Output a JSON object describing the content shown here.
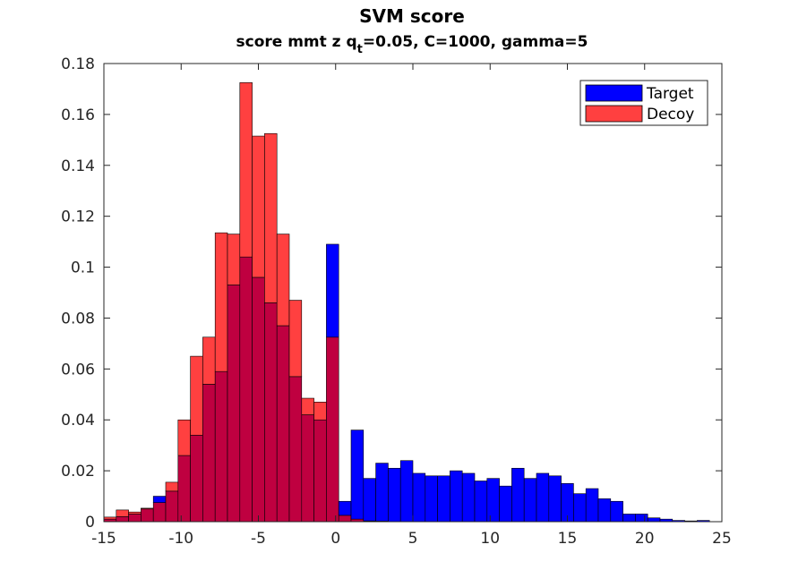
{
  "chart_data": {
    "type": "bar",
    "title": "SVM score",
    "subtitle": {
      "prefix": "score mmt z q",
      "subscript": "t",
      "suffix": "=0.05, C=1000, gamma=5"
    },
    "xlabel": "",
    "ylabel": "",
    "xlim": [
      -15,
      25
    ],
    "ylim": [
      0,
      0.18
    ],
    "xticks": [
      -15,
      -10,
      -5,
      0,
      5,
      10,
      15,
      20,
      25
    ],
    "xtick_labels": [
      "-15",
      "-10",
      "-5",
      "0",
      "5",
      "10",
      "15",
      "20",
      "25"
    ],
    "yticks": [
      0,
      0.02,
      0.04,
      0.06,
      0.08,
      0.1,
      0.12,
      0.14,
      0.16,
      0.18
    ],
    "ytick_labels": [
      "0",
      "0.02",
      "0.04",
      "0.06",
      "0.08",
      "0.1",
      "0.12",
      "0.14",
      "0.16",
      "0.18"
    ],
    "grid": false,
    "legend_position": "top-right",
    "bin_edges_start": -15.0,
    "bin_width": 0.8,
    "colors": {
      "Target": "#0000ff",
      "Decoy": "#ff4040",
      "overlap": "#bf0040",
      "edge": "#000000",
      "axis": "#262626"
    },
    "series": [
      {
        "name": "Target",
        "values": [
          0.001,
          0.002,
          0.003,
          0.005,
          0.01,
          0.012,
          0.026,
          0.034,
          0.054,
          0.059,
          0.093,
          0.104,
          0.096,
          0.086,
          0.077,
          0.057,
          0.042,
          0.04,
          0.109,
          0.008,
          0.036,
          0.017,
          0.023,
          0.021,
          0.024,
          0.019,
          0.018,
          0.018,
          0.02,
          0.019,
          0.016,
          0.017,
          0.014,
          0.021,
          0.017,
          0.019,
          0.018,
          0.015,
          0.011,
          0.013,
          0.009,
          0.008,
          0.003,
          0.003,
          0.0015,
          0.001,
          0.0005,
          0.0003,
          0.0005,
          0.0
        ]
      },
      {
        "name": "Decoy",
        "values": [
          0.0018,
          0.0046,
          0.0038,
          0.0053,
          0.0075,
          0.0155,
          0.04,
          0.065,
          0.0725,
          0.1135,
          0.113,
          0.1725,
          0.1515,
          0.1525,
          0.113,
          0.087,
          0.0485,
          0.047,
          0.0725,
          0.0025,
          0.001,
          0.0003,
          0.0002,
          0.0,
          0.0,
          0.0,
          0.0,
          0.0,
          0.0,
          0.0,
          0.0,
          0.0,
          0.0,
          0.0,
          0.0,
          0.0,
          0.0,
          0.0,
          0.0,
          0.0,
          0.0,
          0.0,
          0.0,
          0.0,
          0.0,
          0.0,
          0.0,
          0.0,
          0.0,
          0.0
        ]
      }
    ]
  }
}
